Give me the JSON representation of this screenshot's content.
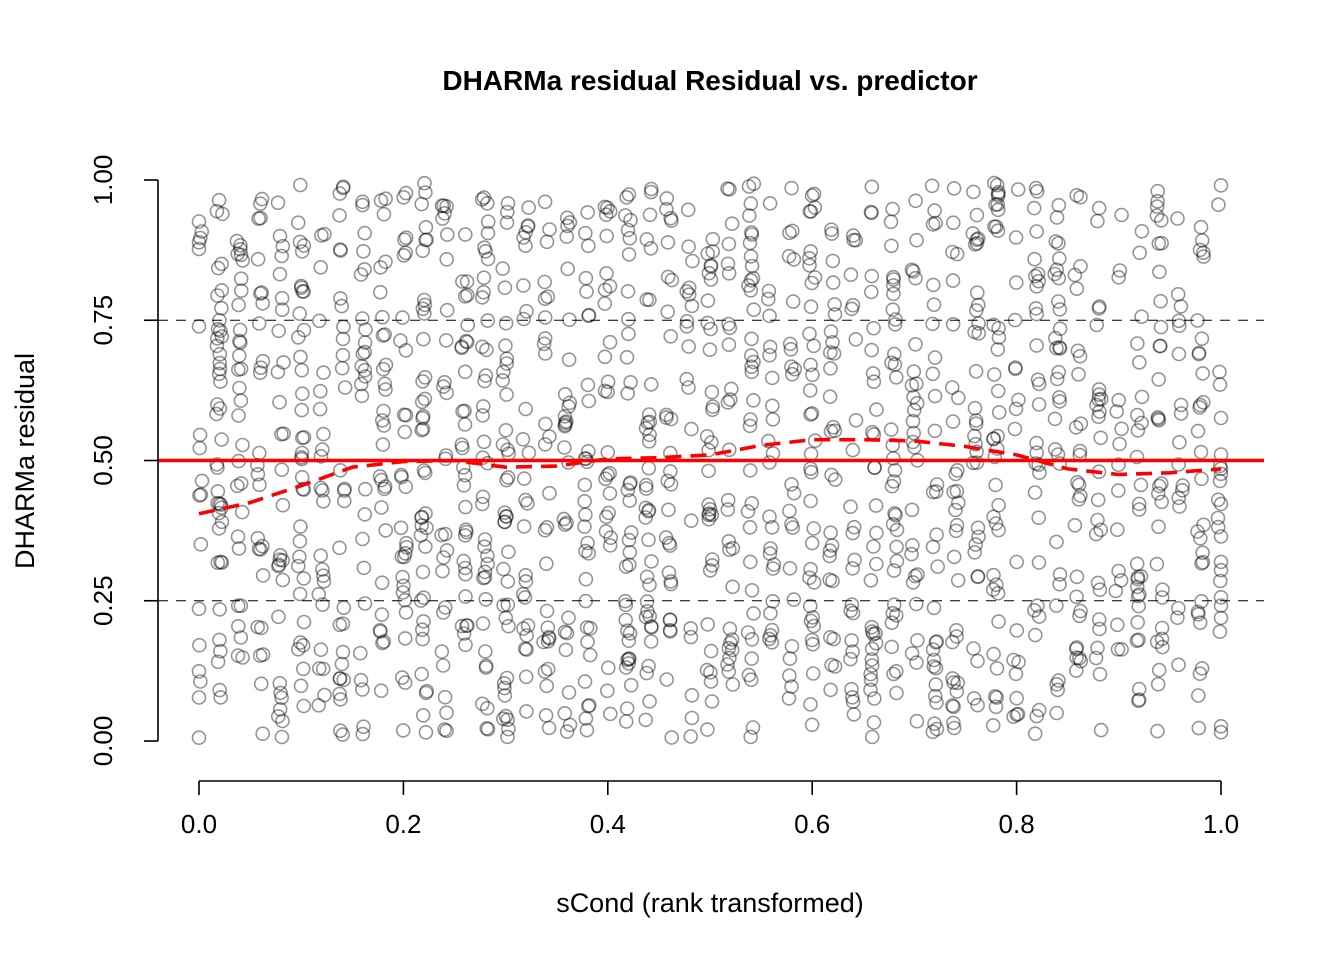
{
  "chart_data": {
    "type": "scatter",
    "title": "DHARMa residual Residual vs. predictor",
    "xlabel": "sCond (rank transformed)",
    "ylabel": "DHARMa residual",
    "xlim": [
      0,
      1
    ],
    "ylim": [
      0,
      1
    ],
    "xticks": [
      0.0,
      0.2,
      0.4,
      0.6,
      0.8,
      1.0
    ],
    "xtick_labels": [
      "0.0",
      "0.2",
      "0.4",
      "0.6",
      "0.8",
      "1.0"
    ],
    "yticks": [
      0.0,
      0.25,
      0.5,
      0.75,
      1.0
    ],
    "ytick_labels": [
      "0.00",
      "0.25",
      "0.50",
      "0.75",
      "1.00"
    ],
    "grid": false,
    "reference_lines": [
      {
        "y": 0.25,
        "style": "dashed",
        "color": "#000000"
      },
      {
        "y": 0.5,
        "style": "solid",
        "color": "#ff0000"
      },
      {
        "y": 0.75,
        "style": "dashed",
        "color": "#000000"
      }
    ],
    "smooth_line": {
      "color": "#ff0000",
      "style": "dashed",
      "x": [
        0.0,
        0.05,
        0.1,
        0.15,
        0.2,
        0.25,
        0.3,
        0.35,
        0.4,
        0.45,
        0.5,
        0.55,
        0.6,
        0.65,
        0.7,
        0.75,
        0.8,
        0.85,
        0.9,
        0.95,
        1.0
      ],
      "y": [
        0.405,
        0.425,
        0.455,
        0.488,
        0.498,
        0.5,
        0.488,
        0.49,
        0.503,
        0.505,
        0.51,
        0.527,
        0.537,
        0.537,
        0.535,
        0.525,
        0.51,
        0.485,
        0.475,
        0.478,
        0.485
      ]
    },
    "points": {
      "count": 1500,
      "color": "rgba(0,0,0,0.42)",
      "marker": "open-circle"
    }
  }
}
